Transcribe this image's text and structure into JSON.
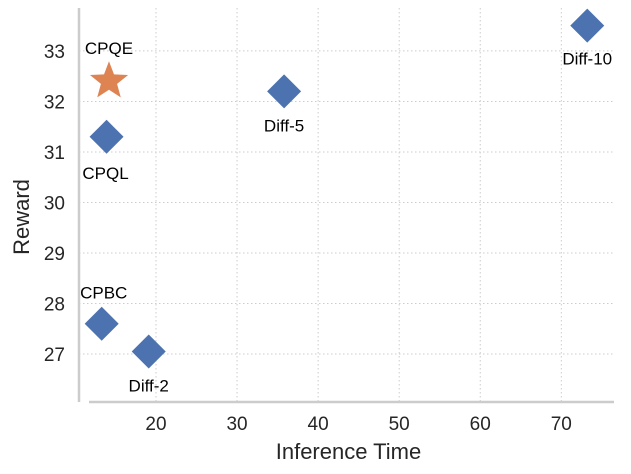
{
  "chart_data": {
    "type": "scatter",
    "title": "",
    "xlabel": "Inference Time",
    "ylabel": "Reward",
    "xlim": [
      10.5,
      76.5
    ],
    "ylim": [
      26.05,
      33.85
    ],
    "xticks": [
      20,
      30,
      40,
      50,
      60,
      70
    ],
    "yticks": [
      27,
      28,
      29,
      30,
      31,
      32,
      33
    ],
    "grid": true,
    "legend": "none",
    "points": [
      {
        "label": "CPQE",
        "x": 14.2,
        "y": 32.4,
        "marker": "star",
        "color": "#dd8452"
      },
      {
        "label": "CPQL",
        "x": 13.9,
        "y": 31.3,
        "marker": "diamond",
        "color": "#4c72b0"
      },
      {
        "label": "Diff-5",
        "x": 35.8,
        "y": 32.2,
        "marker": "diamond",
        "color": "#4c72b0"
      },
      {
        "label": "Diff-10",
        "x": 73.2,
        "y": 33.5,
        "marker": "diamond",
        "color": "#4c72b0"
      },
      {
        "label": "CPBC",
        "x": 13.3,
        "y": 27.6,
        "marker": "diamond",
        "color": "#4c72b0"
      },
      {
        "label": "Diff-2",
        "x": 19.1,
        "y": 27.05,
        "marker": "diamond",
        "color": "#4c72b0"
      }
    ]
  }
}
